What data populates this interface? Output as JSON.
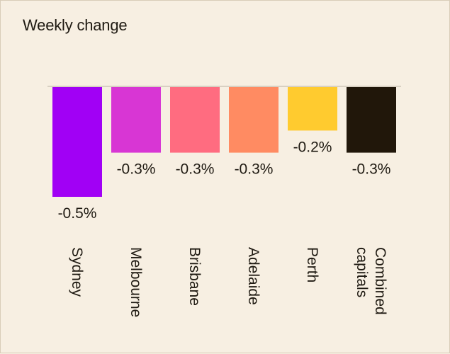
{
  "chart_data": {
    "type": "bar",
    "title": "Weekly change",
    "categories": [
      "Sydney",
      "Melbourne",
      "Brisbane",
      "Adelaide",
      "Perth",
      "Combined capitals"
    ],
    "category_lines": [
      [
        "Sydney"
      ],
      [
        "Melbourne"
      ],
      [
        "Brisbane"
      ],
      [
        "Adelaide"
      ],
      [
        "Perth"
      ],
      [
        "Combined",
        "capitals"
      ]
    ],
    "values": [
      -0.5,
      -0.3,
      -0.3,
      -0.3,
      -0.2,
      -0.3
    ],
    "value_labels": [
      "-0.5%",
      "-0.3%",
      "-0.3%",
      "-0.3%",
      "-0.2%",
      "-0.3%"
    ],
    "colors": [
      "#a100f5",
      "#d836d4",
      "#ff6c80",
      "#ff8b62",
      "#ffcb2f",
      "#21170a"
    ],
    "ylim": [
      -0.5,
      0
    ],
    "zero_line_color": "#d8d0c2",
    "grid": false,
    "legend": "none"
  }
}
